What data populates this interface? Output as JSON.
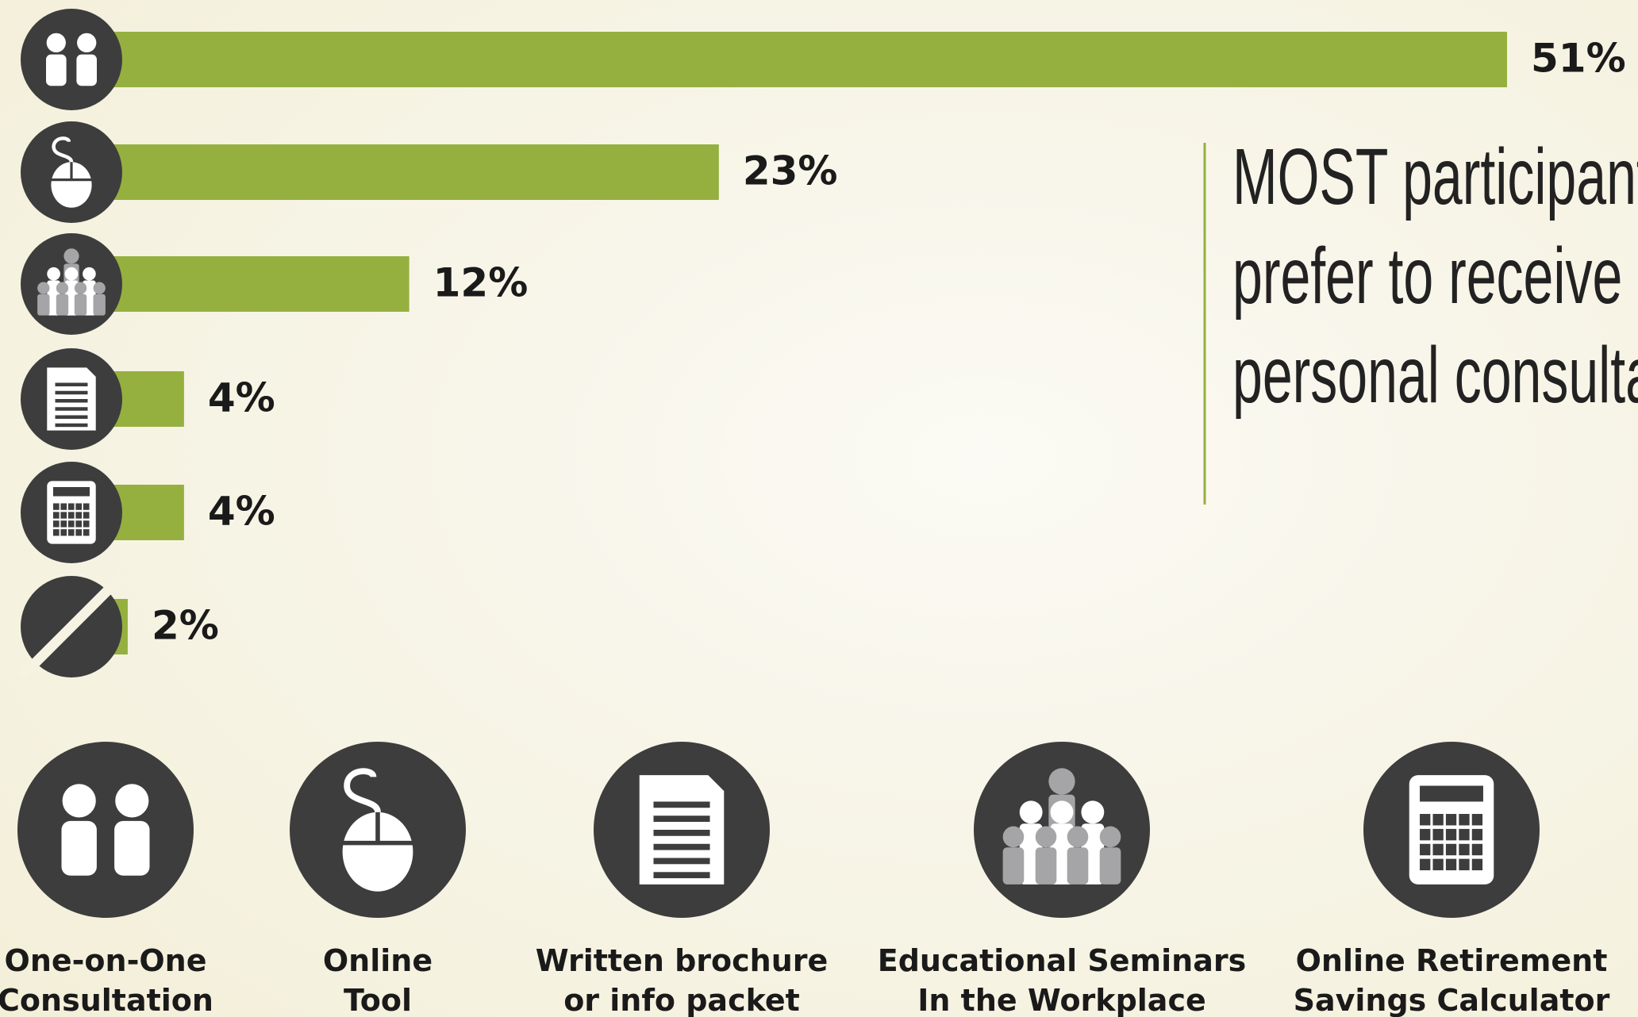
{
  "chart_data": {
    "type": "bar",
    "orientation": "horizontal",
    "categories": [
      null,
      null,
      null,
      null,
      null,
      null
    ],
    "values": [
      51,
      23,
      12,
      4,
      4,
      2
    ],
    "value_labels": [
      "51%",
      "23%",
      "12%",
      "4%",
      "4%",
      "2%"
    ],
    "color": "#95b03f",
    "xlim": [
      0,
      51
    ],
    "annotation": [
      "MOST participant",
      "prefer to receive h",
      "personal consulta"
    ],
    "icon_legend": [
      [
        "One-on-One",
        "Consultation"
      ],
      [
        "Online",
        "Tool"
      ],
      [
        "Written brochure",
        "or info packet"
      ],
      [
        "Educational Seminars",
        "In the Workplace"
      ],
      [
        "Online Retirement",
        "Savings Calculator"
      ]
    ]
  }
}
